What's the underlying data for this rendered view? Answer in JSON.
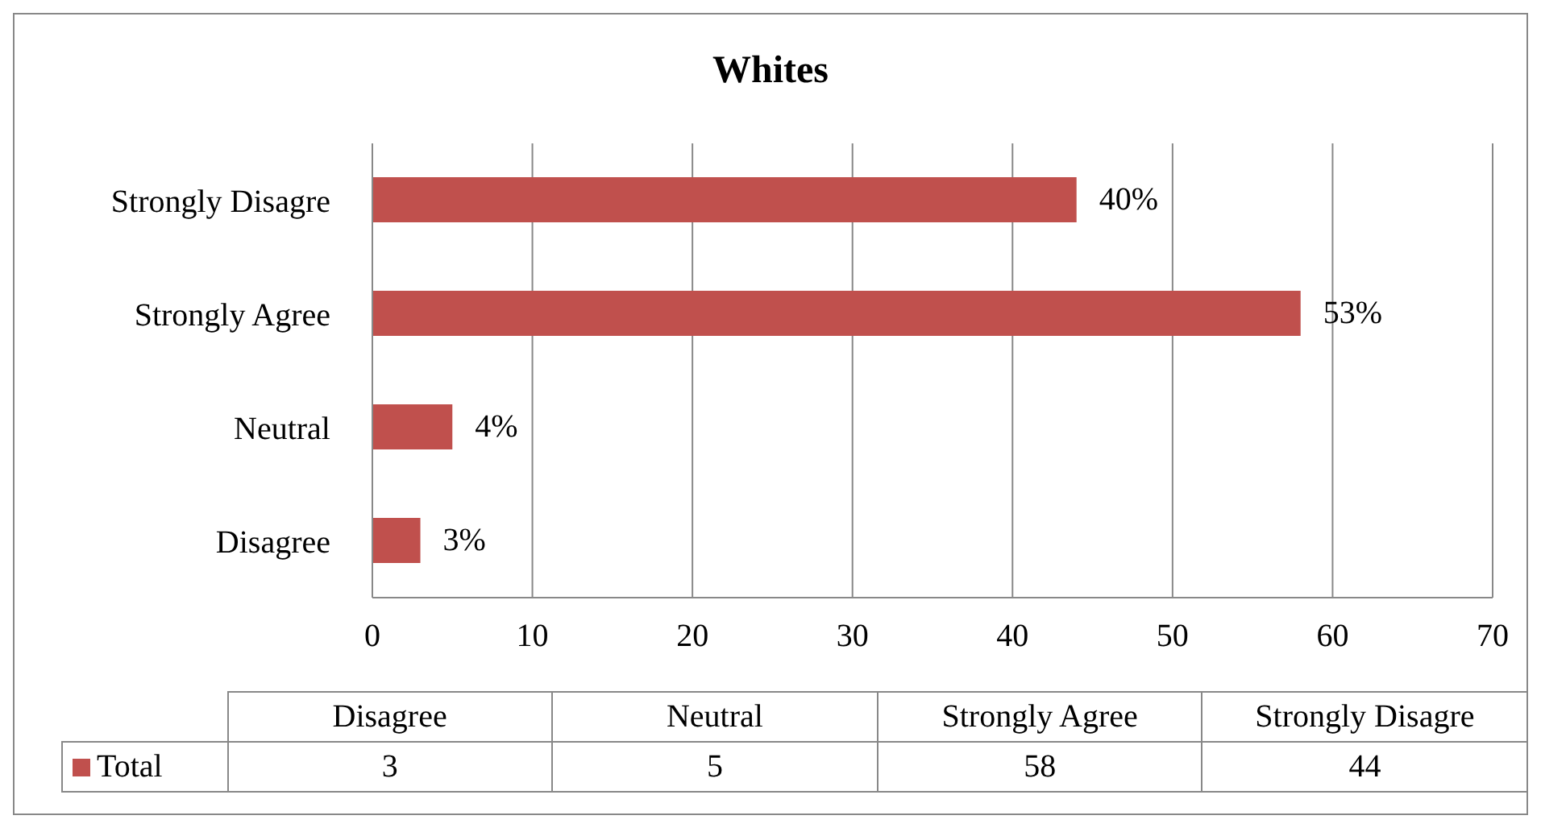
{
  "chart_data": [
    {
      "type": "bar",
      "title": "Whites",
      "orientation": "horizontal",
      "categories": [
        "Strongly Disagre",
        "Strongly Agree",
        "Neutral",
        "Disagree"
      ],
      "series": [
        {
          "color": "#c0504d",
          "values": [
            44,
            58,
            5,
            3
          ]
        }
      ],
      "annotations": [
        "40%",
        "53%",
        "4%",
        "3%"
      ],
      "xlim": [
        0,
        70
      ],
      "xticks": [
        0,
        10,
        20,
        30,
        40,
        50,
        60,
        70
      ],
      "grid": "x"
    },
    {
      "type": "other",
      "categories": [
        "Disagree",
        "Neutral",
        "Strongly Agree",
        "Strongly Disagre"
      ],
      "series": [
        {
          "name": "Total",
          "color": "#c0504d",
          "values": [
            3,
            5,
            58,
            44
          ]
        }
      ],
      "legend": "left",
      "data_labels": true
    }
  ]
}
